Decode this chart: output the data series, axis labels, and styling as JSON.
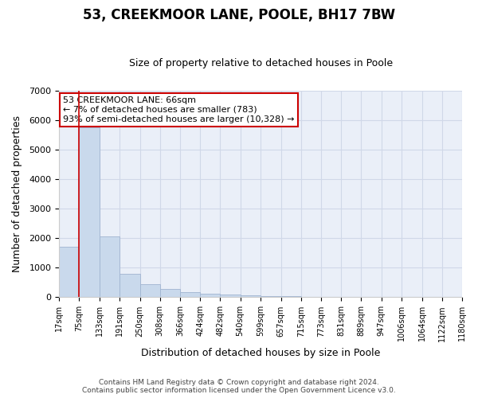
{
  "title": "53, CREEKMOOR LANE, POOLE, BH17 7BW",
  "subtitle": "Size of property relative to detached houses in Poole",
  "xlabel": "Distribution of detached houses by size in Poole",
  "ylabel": "Number of detached properties",
  "vline_x": 75,
  "annotation_text": "53 CREEKMOOR LANE: 66sqm\n← 7% of detached houses are smaller (783)\n93% of semi-detached houses are larger (10,328) →",
  "bar_color": "#c9d9ec",
  "bar_edgecolor": "#a0b4d0",
  "vline_color": "#cc0000",
  "annotation_box_color": "#cc0000",
  "annotation_bg": "#ffffff",
  "footer_line1": "Contains HM Land Registry data © Crown copyright and database right 2024.",
  "footer_line2": "Contains public sector information licensed under the Open Government Licence v3.0.",
  "bins": [
    17,
    75,
    133,
    191,
    250,
    308,
    366,
    424,
    482,
    540,
    599,
    657,
    715,
    773,
    831,
    889,
    947,
    1006,
    1064,
    1122,
    1180
  ],
  "counts": [
    1700,
    5750,
    2050,
    800,
    430,
    290,
    170,
    130,
    80,
    55,
    40,
    28,
    18,
    10,
    7,
    5,
    4,
    3,
    2,
    2
  ],
  "ylim": [
    0,
    7000
  ],
  "yticks": [
    0,
    1000,
    2000,
    3000,
    4000,
    5000,
    6000,
    7000
  ],
  "grid_color": "#d0d8e8",
  "background_color": "#eaeff8",
  "title_fontsize": 12,
  "subtitle_fontsize": 9
}
